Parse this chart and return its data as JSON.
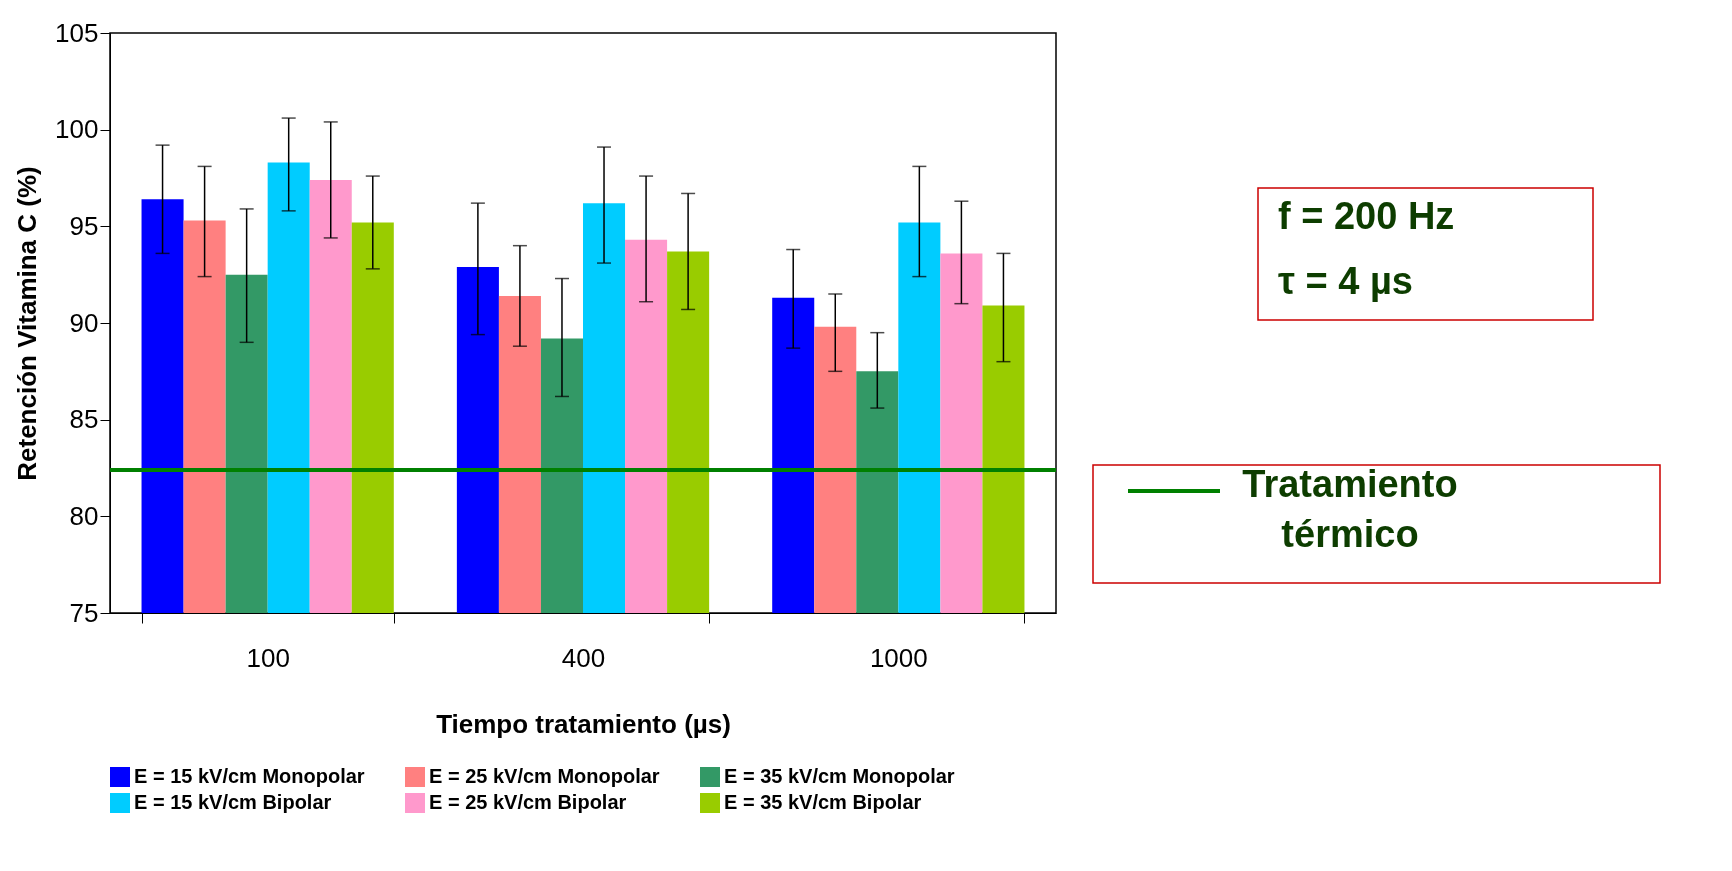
{
  "chart_data": {
    "type": "bar",
    "xlabel": "Tiempo tratamiento (µs)",
    "ylabel": "Retención Vitamina C (%)",
    "categories": [
      "100",
      "400",
      "1000"
    ],
    "series": [
      {
        "name": "E = 15 kV/cm Monopolar",
        "color": "#0000ff",
        "values": [
          96.4,
          92.9,
          91.3
        ],
        "errors": [
          [
            93.6,
            99.2
          ],
          [
            89.4,
            96.2
          ],
          [
            88.7,
            93.8
          ]
        ]
      },
      {
        "name": "E = 25 kV/cm Monopolar",
        "color": "#ff8080",
        "values": [
          95.3,
          91.4,
          89.8
        ],
        "errors": [
          [
            92.4,
            98.1
          ],
          [
            88.8,
            94.0
          ],
          [
            87.5,
            91.5
          ]
        ]
      },
      {
        "name": "E = 35 kV/cm Monopolar",
        "color": "#339966",
        "values": [
          92.5,
          89.2,
          87.5
        ],
        "errors": [
          [
            89.0,
            95.9
          ],
          [
            86.2,
            92.3
          ],
          [
            85.6,
            89.5
          ]
        ]
      },
      {
        "name": "E = 15 kV/cm Bipolar",
        "color": "#00ccff",
        "values": [
          98.3,
          96.2,
          95.2
        ],
        "errors": [
          [
            95.8,
            100.6
          ],
          [
            93.1,
            99.1
          ],
          [
            92.4,
            98.1
          ]
        ]
      },
      {
        "name": "E = 25 kV/cm Bipolar",
        "color": "#ff99cc",
        "values": [
          97.4,
          94.3,
          93.6
        ],
        "errors": [
          [
            94.4,
            100.4
          ],
          [
            91.1,
            97.6
          ],
          [
            91.0,
            96.3
          ]
        ]
      },
      {
        "name": "E = 35 kV/cm Bipolar",
        "color": "#99cc00",
        "values": [
          95.2,
          93.7,
          90.9
        ],
        "errors": [
          [
            92.8,
            97.6
          ],
          [
            90.7,
            96.7
          ],
          [
            88.0,
            93.6
          ]
        ]
      }
    ],
    "ylim": [
      75,
      105
    ],
    "yticks": [
      75,
      80,
      85,
      90,
      95,
      100,
      105
    ],
    "ref_lines": [
      {
        "axis": "y",
        "value": 82.4,
        "label": "Tratamiento térmico",
        "color": "#008000"
      }
    ],
    "annotations": [
      "f = 200 Hz",
      "τ = 4 µs"
    ],
    "legend": "bottom",
    "grid": false
  }
}
